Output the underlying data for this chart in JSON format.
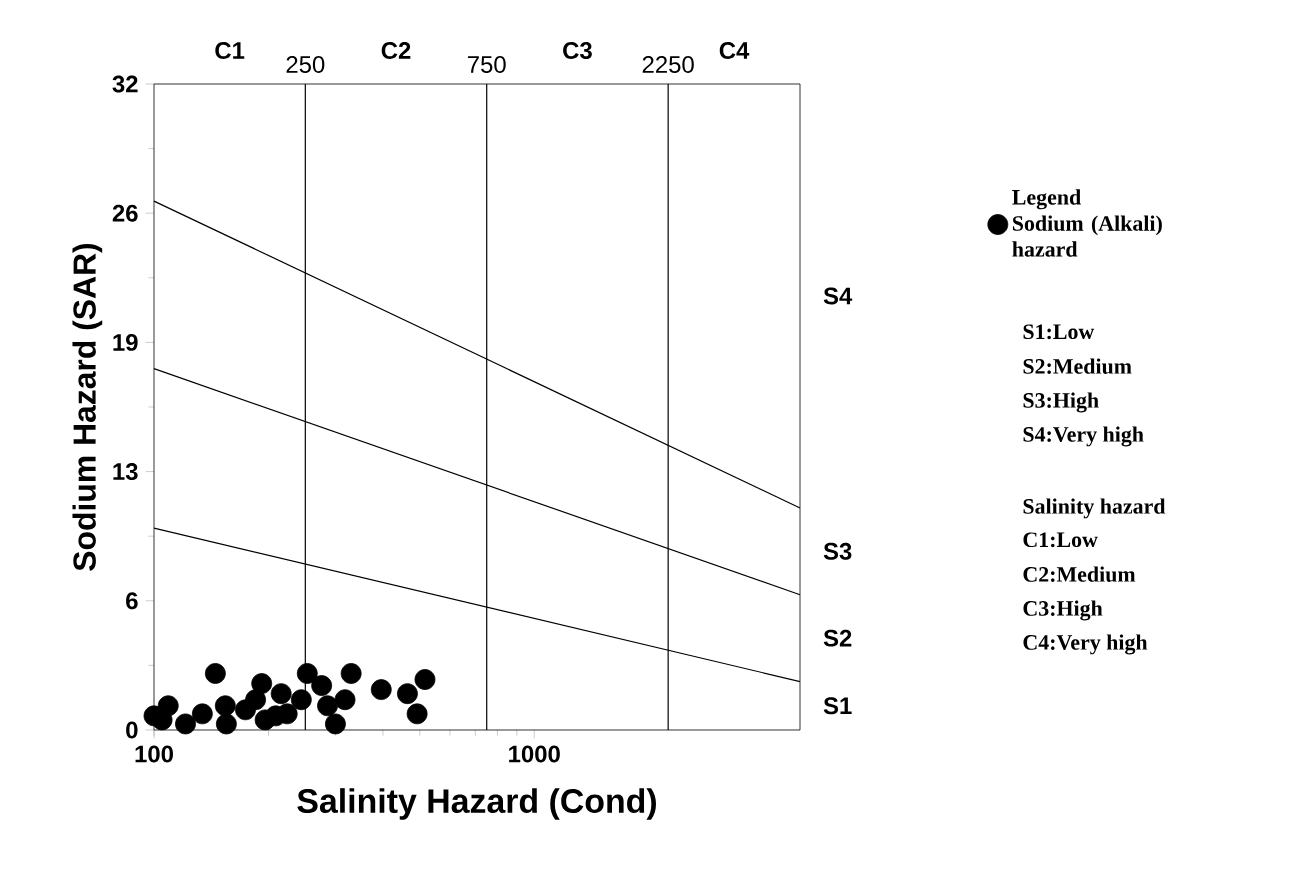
{
  "chart_data": {
    "type": "scatter",
    "xlabel": "Salinity Hazard (Cond)",
    "ylabel": "Sodium Hazard (SAR)",
    "legend_title": "Legend",
    "log": "x",
    "legend": "right",
    "xlim": [
      100,
      5000
    ],
    "xticks": [
      100,
      1000
    ],
    "ylim": [
      0,
      32
    ],
    "yticks": [
      0,
      {
        "value": 6.4,
        "label": "6"
      },
      {
        "value": 12.8,
        "label": "13"
      },
      {
        "value": 19.2,
        "label": "19"
      },
      {
        "value": 25.6,
        "label": "26"
      },
      32
    ],
    "ref_lines": [
      {
        "axis": "x",
        "value": 250,
        "label": "250"
      },
      {
        "axis": "x",
        "value": 750,
        "label": "750"
      },
      {
        "axis": "x",
        "value": 2250,
        "label": "2250"
      }
    ],
    "annotations": [
      "C1",
      "C2",
      "C3",
      "C4",
      "S1",
      "S2",
      "S3",
      "S4",
      "S1:Low",
      "S2:Medium",
      "S3:High",
      "S4:Very high",
      "Salinity hazard",
      "C1:Low",
      "C2:Medium",
      "C3:High",
      "C4:Very high"
    ],
    "series": [
      {
        "name": "Sodium (Alkali) hazard",
        "marker": "circle",
        "color": "#000000",
        "x": [
          100,
          105,
          109,
          121,
          134,
          145,
          154,
          155,
          174,
          185,
          192,
          196,
          209,
          216,
          224,
          244,
          253,
          276,
          286,
          300,
          318,
          330,
          396,
          464,
          492,
          516
        ],
        "values": [
          0.7,
          0.5,
          1.2,
          0.3,
          0.8,
          2.8,
          1.2,
          0.3,
          1.0,
          1.5,
          2.3,
          0.5,
          0.7,
          1.8,
          0.8,
          1.5,
          2.8,
          2.2,
          1.2,
          0.3,
          1.5,
          2.8,
          2.0,
          1.8,
          0.8,
          2.5
        ]
      },
      {
        "type": "line",
        "marker": "none",
        "color": "#000000",
        "x": [
          100,
          5000
        ],
        "values": [
          10.0,
          2.4
        ]
      },
      {
        "type": "line",
        "marker": "none",
        "color": "#000000",
        "x": [
          100,
          5000
        ],
        "values": [
          17.9,
          6.7
        ]
      },
      {
        "type": "line",
        "marker": "none",
        "color": "#000000",
        "x": [
          100,
          5000
        ],
        "values": [
          26.2,
          11.0
        ]
      }
    ]
  }
}
